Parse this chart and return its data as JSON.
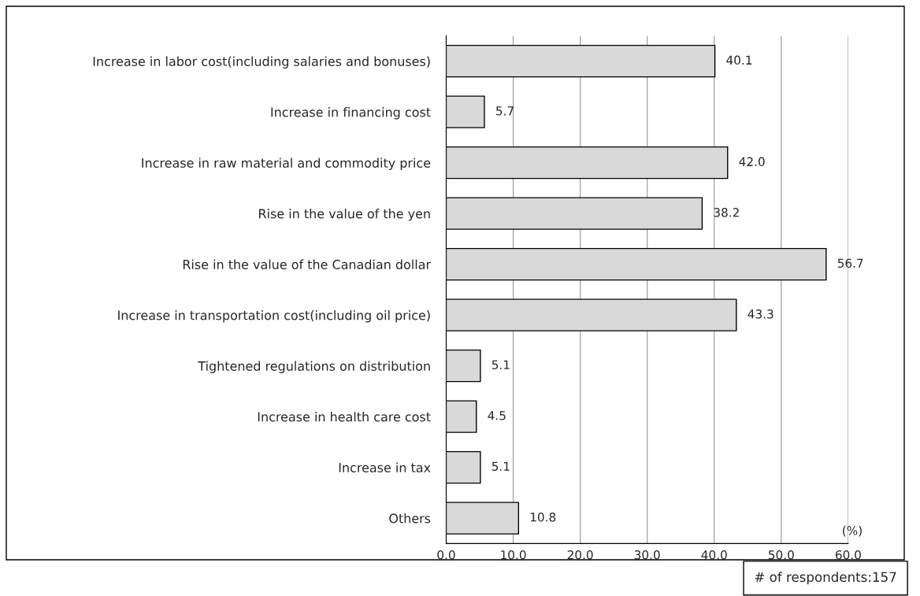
{
  "chart_data": {
    "type": "bar",
    "orientation": "horizontal",
    "categories": [
      "Increase in labor cost(including salaries and bonuses)",
      "Increase in financing cost",
      "Increase in raw material and commodity price",
      "Rise in the value of the yen",
      "Rise in the value of the Canadian dollar",
      "Increase in transportation cost(including oil price)",
      "Tightened regulations on distribution",
      "Increase in health care cost",
      "Increase in tax",
      "Others"
    ],
    "values": [
      40.1,
      5.7,
      42.0,
      38.2,
      56.7,
      43.3,
      5.1,
      4.5,
      5.1,
      10.8
    ],
    "value_labels": [
      "40.1",
      "5.7",
      "42.0",
      "38.2",
      "56.7",
      "43.3",
      "5.1",
      "4.5",
      "5.1",
      "10.8"
    ],
    "color": "#d9d9d9",
    "xlim": [
      0,
      60
    ],
    "xticks": [
      {
        "value": 0,
        "label": "0.0"
      },
      {
        "value": 10,
        "label": "10.0"
      },
      {
        "value": 20,
        "label": "20.0"
      },
      {
        "value": 30,
        "label": "30.0"
      },
      {
        "value": 40,
        "label": "40.0"
      },
      {
        "value": 50,
        "label": "50.0"
      },
      {
        "value": 60,
        "label": "60.0"
      }
    ],
    "xlabel": "(%)",
    "grid": "x",
    "annotations": [
      "# of respondents:157"
    ]
  }
}
